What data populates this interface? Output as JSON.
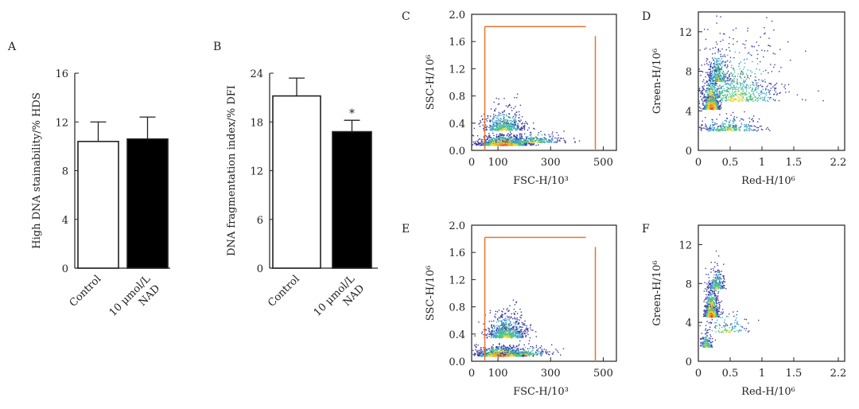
{
  "chart_data": [
    {
      "id": "A",
      "type": "bar",
      "panel_label": "A",
      "ylabel": "High DNA stainability/% HDS",
      "ylim": [
        0,
        16
      ],
      "yticks": [
        0,
        4,
        8,
        12,
        16
      ],
      "categories": [
        "Control",
        "10 μmol/L NAD"
      ],
      "category_lines": [
        [
          "Control"
        ],
        [
          "10 μmol/L",
          "NAD"
        ]
      ],
      "values": [
        10.4,
        10.6
      ],
      "errors": [
        1.6,
        1.8
      ],
      "fills": [
        "#ffffff",
        "#000000"
      ],
      "annotations": []
    },
    {
      "id": "B",
      "type": "bar",
      "panel_label": "B",
      "ylabel": "DNA fragmentation index/% DFI",
      "ylim": [
        0,
        24
      ],
      "yticks": [
        0,
        6,
        12,
        18,
        24
      ],
      "categories": [
        "Control",
        "10 μmol/L NAD"
      ],
      "category_lines": [
        [
          "Control"
        ],
        [
          "10 μmol/L",
          "NAD"
        ]
      ],
      "values": [
        21.2,
        16.8
      ],
      "errors": [
        2.2,
        1.4
      ],
      "fills": [
        "#ffffff",
        "#000000"
      ],
      "annotations": [
        {
          "bar": 1,
          "text": "*"
        }
      ]
    },
    {
      "id": "C",
      "type": "scatter",
      "panel_label": "C",
      "xlabel": "FSC-H/10³",
      "ylabel": "SSC-H/10⁶",
      "xlim": [
        0,
        550
      ],
      "ylim": [
        0,
        2.0
      ],
      "xticks": [
        0,
        100,
        300,
        500
      ],
      "yticks": [
        0.0,
        0.4,
        0.8,
        1.2,
        1.6,
        2.0
      ],
      "ytick_labels": [
        "0.0",
        "0.4",
        "0.8",
        "1.2",
        "1.6",
        "2.0"
      ],
      "gate": {
        "x1": 50,
        "x2": 470,
        "y1": 0.0,
        "y2": 1.82,
        "color": "#e8742f"
      },
      "clusters": [
        {
          "cx": 120,
          "cy": 0.08,
          "sx": 45,
          "sy": 0.07,
          "n": 1400
        },
        {
          "cx": 120,
          "cy": 0.3,
          "sx": 40,
          "sy": 0.17,
          "n": 500
        },
        {
          "cx": 230,
          "cy": 0.12,
          "sx": 60,
          "sy": 0.09,
          "n": 250
        }
      ]
    },
    {
      "id": "D",
      "type": "scatter",
      "panel_label": "D",
      "xlabel": "Red-H/10⁶",
      "ylabel": "Green-H/10⁶",
      "xlim": [
        0,
        2.3
      ],
      "ylim": [
        0,
        14
      ],
      "xticks": [
        0,
        0.5,
        1,
        1.5,
        2.2
      ],
      "yticks": [
        0,
        4,
        8,
        12
      ],
      "clusters": [
        {
          "cx": 0.2,
          "cy": 4.2,
          "sx": 0.06,
          "sy": 1.6,
          "n": 900
        },
        {
          "cx": 0.3,
          "cy": 7.0,
          "sx": 0.08,
          "sy": 1.8,
          "n": 300
        },
        {
          "cx": 0.6,
          "cy": 5.0,
          "sx": 0.35,
          "sy": 3.5,
          "n": 700
        },
        {
          "cx": 0.5,
          "cy": 2.0,
          "sx": 0.25,
          "sy": 0.8,
          "n": 300
        }
      ]
    },
    {
      "id": "E",
      "type": "scatter",
      "panel_label": "E",
      "xlabel": "FSC-H/10³",
      "ylabel": "SSC-H/10⁶",
      "xlim": [
        0,
        550
      ],
      "ylim": [
        0,
        2.0
      ],
      "xticks": [
        0,
        100,
        300,
        500
      ],
      "yticks": [
        0.0,
        0.4,
        0.8,
        1.2,
        1.6,
        2.0
      ],
      "ytick_labels": [
        "0.0",
        "0.4",
        "0.8",
        "1.2",
        "1.6",
        "2.0"
      ],
      "gate": {
        "x1": 50,
        "x2": 470,
        "y1": 0.0,
        "y2": 1.82,
        "color": "#e8742f"
      },
      "clusters": [
        {
          "cx": 110,
          "cy": 0.08,
          "sx": 45,
          "sy": 0.07,
          "n": 1300
        },
        {
          "cx": 130,
          "cy": 0.35,
          "sx": 40,
          "sy": 0.2,
          "n": 700
        },
        {
          "cx": 200,
          "cy": 0.1,
          "sx": 50,
          "sy": 0.08,
          "n": 200
        }
      ]
    },
    {
      "id": "F",
      "type": "scatter",
      "panel_label": "F",
      "xlabel": "Red-H/10⁶",
      "ylabel": "Green-H/10⁶",
      "xlim": [
        0,
        2.3
      ],
      "ylim": [
        0,
        14
      ],
      "xticks": [
        0,
        0.5,
        1,
        1.5,
        2.2
      ],
      "yticks": [
        0,
        4,
        8,
        12
      ],
      "clusters": [
        {
          "cx": 0.2,
          "cy": 4.6,
          "sx": 0.05,
          "sy": 1.4,
          "n": 900
        },
        {
          "cx": 0.28,
          "cy": 7.5,
          "sx": 0.06,
          "sy": 1.2,
          "n": 250
        },
        {
          "cx": 0.12,
          "cy": 1.5,
          "sx": 0.05,
          "sy": 0.8,
          "n": 150
        },
        {
          "cx": 0.45,
          "cy": 3.0,
          "sx": 0.2,
          "sy": 1.2,
          "n": 120
        }
      ]
    }
  ]
}
